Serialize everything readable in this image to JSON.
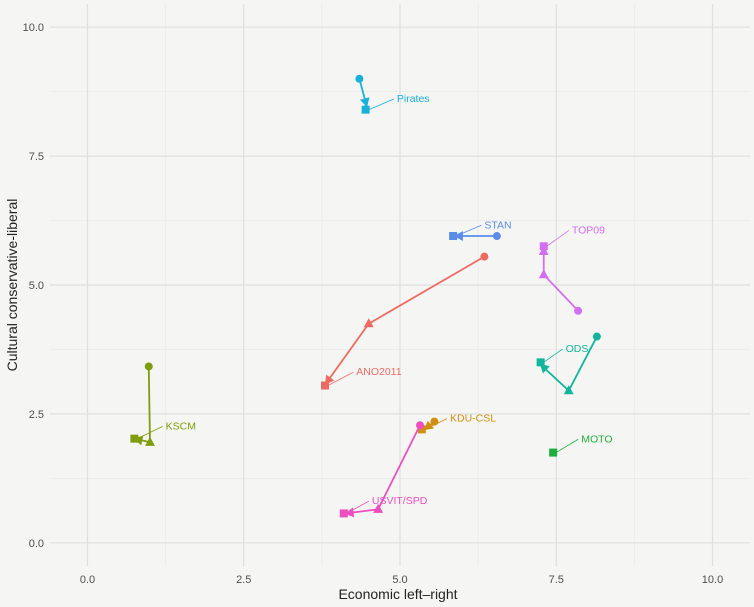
{
  "chart_data": {
    "type": "scatter",
    "title": "",
    "xlabel": "Economic left–right",
    "ylabel": "Cultural conservative-liberal",
    "xlim": [
      -0.6,
      10.6
    ],
    "ylim": [
      -0.45,
      10.45
    ],
    "xticks": [
      "0.0",
      "2.5",
      "5.0",
      "7.5",
      "10.0"
    ],
    "yticks": [
      "0.0",
      "2.5",
      "5.0",
      "7.5",
      "10.0"
    ],
    "grid": true,
    "legend": "none",
    "series": [
      {
        "name": "Pirates",
        "color": "#1bb0d8",
        "points": [
          [
            4.35,
            9.0
          ],
          [
            4.45,
            8.55
          ],
          [
            4.45,
            8.4
          ]
        ],
        "label_at": [
          4.95,
          8.55
        ]
      },
      {
        "name": "STAN",
        "color": "#5b8ce8",
        "points": [
          [
            6.55,
            5.95
          ],
          [
            5.95,
            5.95
          ],
          [
            5.85,
            5.95
          ]
        ],
        "label_at": [
          6.35,
          6.1
        ]
      },
      {
        "name": "TOP09",
        "color": "#d26ef0",
        "points": [
          [
            7.85,
            4.5
          ],
          [
            7.3,
            5.2
          ],
          [
            7.3,
            5.65
          ],
          [
            7.3,
            5.75
          ]
        ],
        "label_at": [
          7.75,
          6.0
        ]
      },
      {
        "name": "ANO2011",
        "color": "#ee6b63",
        "points": [
          [
            6.35,
            5.55
          ],
          [
            4.5,
            4.25
          ],
          [
            3.85,
            3.15
          ],
          [
            3.8,
            3.05
          ]
        ],
        "label_at": [
          4.3,
          3.25
        ]
      },
      {
        "name": "ODS",
        "color": "#12b59c",
        "points": [
          [
            8.15,
            4.0
          ],
          [
            7.7,
            2.95
          ],
          [
            7.3,
            3.4
          ],
          [
            7.25,
            3.5
          ]
        ],
        "label_at": [
          7.65,
          3.7
        ]
      },
      {
        "name": "KSCM",
        "color": "#7e9c0c",
        "points": [
          [
            0.98,
            3.42
          ],
          [
            1.0,
            1.95
          ],
          [
            0.82,
            2.0
          ],
          [
            0.75,
            2.02
          ]
        ],
        "label_at": [
          1.25,
          2.2
        ]
      },
      {
        "name": "KDU-CSL",
        "color": "#d18f10",
        "points": [
          [
            5.55,
            2.35
          ],
          [
            5.45,
            2.25
          ],
          [
            5.35,
            2.2
          ]
        ],
        "label_at": [
          5.8,
          2.35
        ]
      },
      {
        "name": "MOTO",
        "color": "#1fae3a",
        "points": [
          [
            7.45,
            1.75
          ]
        ],
        "label_at": [
          7.9,
          1.95
        ]
      },
      {
        "name": "USVIT/SPD",
        "color": "#ef4ec0",
        "points": [
          [
            5.32,
            2.28
          ],
          [
            4.65,
            0.65
          ],
          [
            4.2,
            0.58
          ],
          [
            4.1,
            0.57
          ]
        ],
        "label_at": [
          4.55,
          0.75
        ]
      }
    ]
  }
}
